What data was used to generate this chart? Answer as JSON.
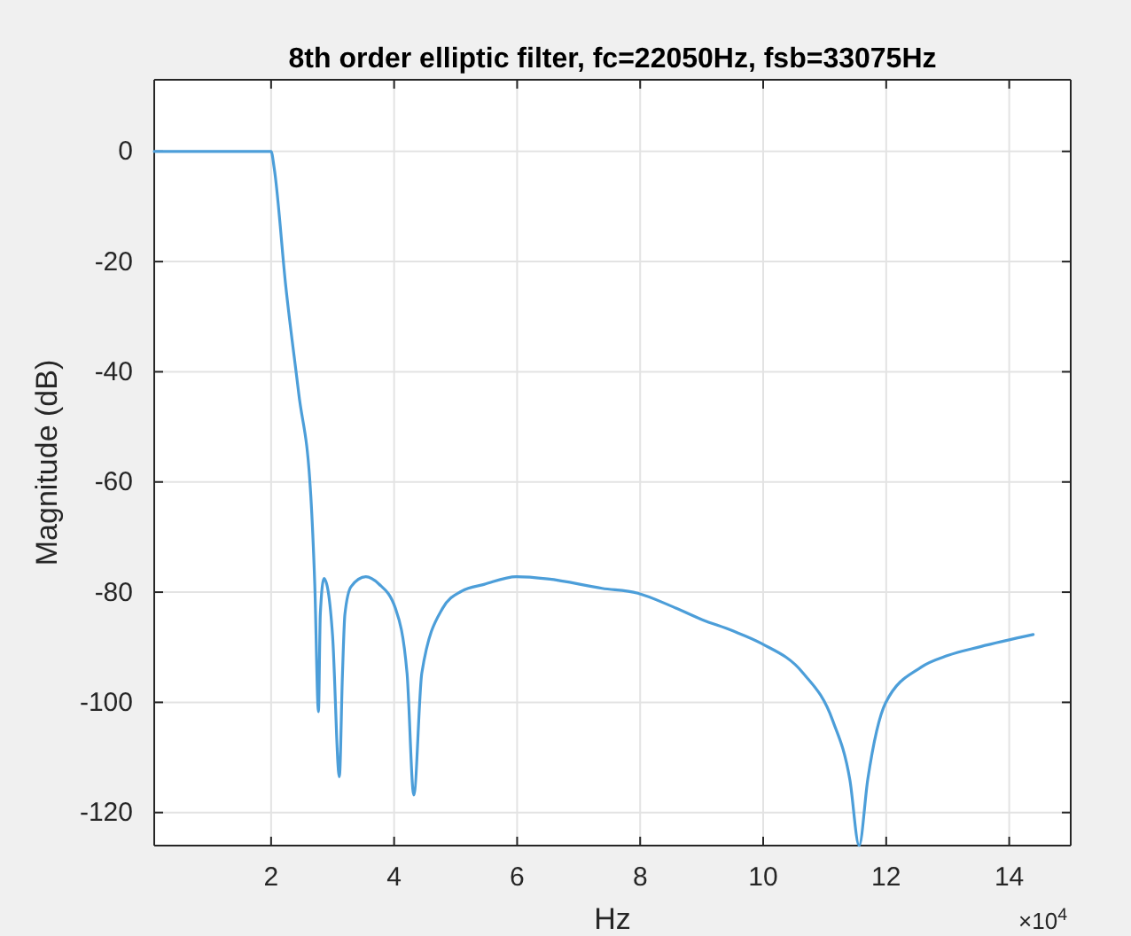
{
  "chart_data": {
    "type": "line",
    "title": "8th order elliptic filter, fc=22050Hz, fsb=33075Hz",
    "xlabel": "Hz",
    "ylabel": "Magnitude (dB)",
    "annotations": [
      "×10$^{4}$"
    ],
    "xlim": [
      0.1,
      15
    ],
    "ylim": [
      -126,
      13
    ],
    "xticks": [
      2,
      4,
      6,
      8,
      10,
      12,
      14
    ],
    "yticks": [
      -120,
      -100,
      -80,
      -60,
      -40,
      -20,
      0
    ],
    "grid": true,
    "marker": "none",
    "line_style": "solid",
    "series": [
      {
        "color": "#4c9ed9",
        "x": [
          0.1,
          0.5,
          1,
          1.5,
          2,
          2.05,
          2.24,
          2.45,
          2.645,
          2.71,
          2.77,
          2.8,
          2.86,
          2.93,
          3,
          3.11,
          3.16,
          3.2,
          3.3,
          3.54,
          3.75,
          4.02,
          4.21,
          4.32,
          4.45,
          4.79,
          5.1,
          5.46,
          5.99,
          6.5,
          7.38,
          7.96,
          8.5,
          9.01,
          9.5,
          9.97,
          10.65,
          11.13,
          11.41,
          11.56,
          11.7,
          11.99,
          12.57,
          13,
          13.53,
          14.39
        ],
        "values": [
          0,
          0,
          0,
          0,
          0,
          -3,
          -24.6,
          -44,
          -62.4,
          -78.6,
          -101.7,
          -84,
          -77.5,
          -80,
          -88,
          -113.5,
          -95,
          -84,
          -79,
          -77.2,
          -78.5,
          -82.9,
          -94.7,
          -116.8,
          -94.7,
          -82.9,
          -79.8,
          -78.6,
          -77.2,
          -77.6,
          -79.3,
          -80.2,
          -82.5,
          -85,
          -87,
          -89.3,
          -94.7,
          -103.3,
          -114.1,
          -126,
          -114,
          -100.1,
          -93.6,
          -91.5,
          -89.9,
          -87.7
        ]
      }
    ]
  }
}
